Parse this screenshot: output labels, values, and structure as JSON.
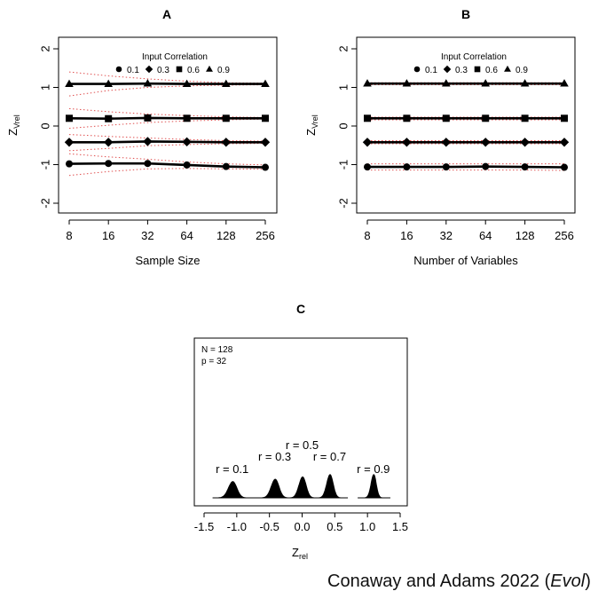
{
  "credit": {
    "text": "Conaway and Adams 2022 (",
    "italic": "Evol",
    "end": ")"
  },
  "chart_data": [
    {
      "id": "A",
      "type": "line",
      "panel_label": "A",
      "xlabel": "Sample Size",
      "ylabel_main": "Z",
      "ylabel_sub": "Vrel",
      "x_tick_labels": [
        "8",
        "16",
        "32",
        "64",
        "128",
        "256"
      ],
      "x": [
        8,
        16,
        32,
        64,
        128,
        256
      ],
      "x_scale": "log2",
      "ylim": [
        -2,
        2
      ],
      "y_ticks": [
        -2,
        -1,
        0,
        1,
        2
      ],
      "legend_title": "Input Correlation",
      "legend_placement": "top-center",
      "series": [
        {
          "name": "0.1",
          "marker": "circle",
          "values": [
            -0.98,
            -0.97,
            -0.97,
            -1.01,
            -1.05,
            -1.07
          ],
          "upper": [
            -0.72,
            -0.8,
            -0.86,
            -0.93,
            -0.98,
            -1.01
          ],
          "lower": [
            -1.28,
            -1.18,
            -1.11,
            -1.1,
            -1.11,
            -1.12
          ]
        },
        {
          "name": "0.3",
          "marker": "diamond",
          "values": [
            -0.42,
            -0.42,
            -0.4,
            -0.41,
            -0.42,
            -0.42
          ],
          "upper": [
            -0.22,
            -0.27,
            -0.31,
            -0.35,
            -0.38,
            -0.39
          ],
          "lower": [
            -0.64,
            -0.58,
            -0.51,
            -0.48,
            -0.46,
            -0.45
          ]
        },
        {
          "name": "0.6",
          "marker": "square",
          "values": [
            0.2,
            0.19,
            0.21,
            0.2,
            0.2,
            0.2
          ],
          "upper": [
            0.45,
            0.37,
            0.31,
            0.27,
            0.24,
            0.22
          ],
          "lower": [
            -0.06,
            0.02,
            0.09,
            0.13,
            0.16,
            0.18
          ]
        },
        {
          "name": "0.9",
          "marker": "triangle",
          "values": [
            1.09,
            1.09,
            1.1,
            1.09,
            1.09,
            1.09
          ],
          "upper": [
            1.4,
            1.3,
            1.22,
            1.16,
            1.12,
            1.11
          ],
          "lower": [
            0.78,
            0.92,
            1.0,
            1.04,
            1.06,
            1.07
          ]
        }
      ]
    },
    {
      "id": "B",
      "type": "line",
      "panel_label": "B",
      "xlabel": "Number of Variables",
      "ylabel_main": "Z",
      "ylabel_sub": "Vrel",
      "x_tick_labels": [
        "8",
        "16",
        "32",
        "64",
        "128",
        "256"
      ],
      "x": [
        8,
        16,
        32,
        64,
        128,
        256
      ],
      "x_scale": "log2",
      "ylim": [
        -2,
        2
      ],
      "y_ticks": [
        -2,
        -1,
        0,
        1,
        2
      ],
      "legend_title": "Input Correlation",
      "legend_placement": "top-center",
      "series": [
        {
          "name": "0.1",
          "marker": "circle",
          "values": [
            -1.06,
            -1.06,
            -1.06,
            -1.05,
            -1.06,
            -1.07
          ],
          "upper": [
            -0.98,
            -0.98,
            -0.98,
            -0.98,
            -0.98,
            -0.98
          ],
          "lower": [
            -1.14,
            -1.14,
            -1.14,
            -1.14,
            -1.14,
            -1.15
          ]
        },
        {
          "name": "0.3",
          "marker": "diamond",
          "values": [
            -0.42,
            -0.42,
            -0.42,
            -0.42,
            -0.42,
            -0.42
          ],
          "upper": [
            -0.38,
            -0.38,
            -0.38,
            -0.38,
            -0.38,
            -0.38
          ],
          "lower": [
            -0.46,
            -0.46,
            -0.46,
            -0.46,
            -0.46,
            -0.46
          ]
        },
        {
          "name": "0.6",
          "marker": "square",
          "values": [
            0.2,
            0.2,
            0.2,
            0.2,
            0.2,
            0.2
          ],
          "upper": [
            0.23,
            0.23,
            0.23,
            0.23,
            0.23,
            0.23
          ],
          "lower": [
            0.16,
            0.16,
            0.16,
            0.16,
            0.16,
            0.16
          ]
        },
        {
          "name": "0.9",
          "marker": "triangle",
          "values": [
            1.1,
            1.1,
            1.1,
            1.1,
            1.1,
            1.1
          ],
          "upper": [
            1.12,
            1.12,
            1.12,
            1.12,
            1.12,
            1.12
          ],
          "lower": [
            1.07,
            1.07,
            1.07,
            1.07,
            1.07,
            1.07
          ]
        }
      ]
    },
    {
      "id": "C",
      "type": "area",
      "panel_label": "C",
      "xlabel_main": "Z",
      "xlabel_sub": "rel",
      "x_ticks": [
        -1.5,
        -1.0,
        -0.5,
        0.0,
        0.5,
        1.0,
        1.5
      ],
      "x_tick_labels": [
        "-1.5",
        "-1.0",
        "-0.5",
        "0.0",
        "0.5",
        "1.0",
        "1.5"
      ],
      "xlim": [
        -1.6,
        1.72
      ],
      "annotations": [
        "N = 128",
        "p = 32"
      ],
      "distributions": [
        {
          "label": "r = 0.1",
          "mean": -1.07,
          "sd": 0.065,
          "peak": 0.7
        },
        {
          "label": "r = 0.3",
          "mean": -0.42,
          "sd": 0.06,
          "peak": 0.8
        },
        {
          "label": "r = 0.5",
          "mean": 0.0,
          "sd": 0.055,
          "peak": 0.9
        },
        {
          "label": "r = 0.7",
          "mean": 0.42,
          "sd": 0.05,
          "peak": 1.0
        },
        {
          "label": "r = 0.9",
          "mean": 1.09,
          "sd": 0.04,
          "peak": 1.0
        }
      ]
    }
  ]
}
